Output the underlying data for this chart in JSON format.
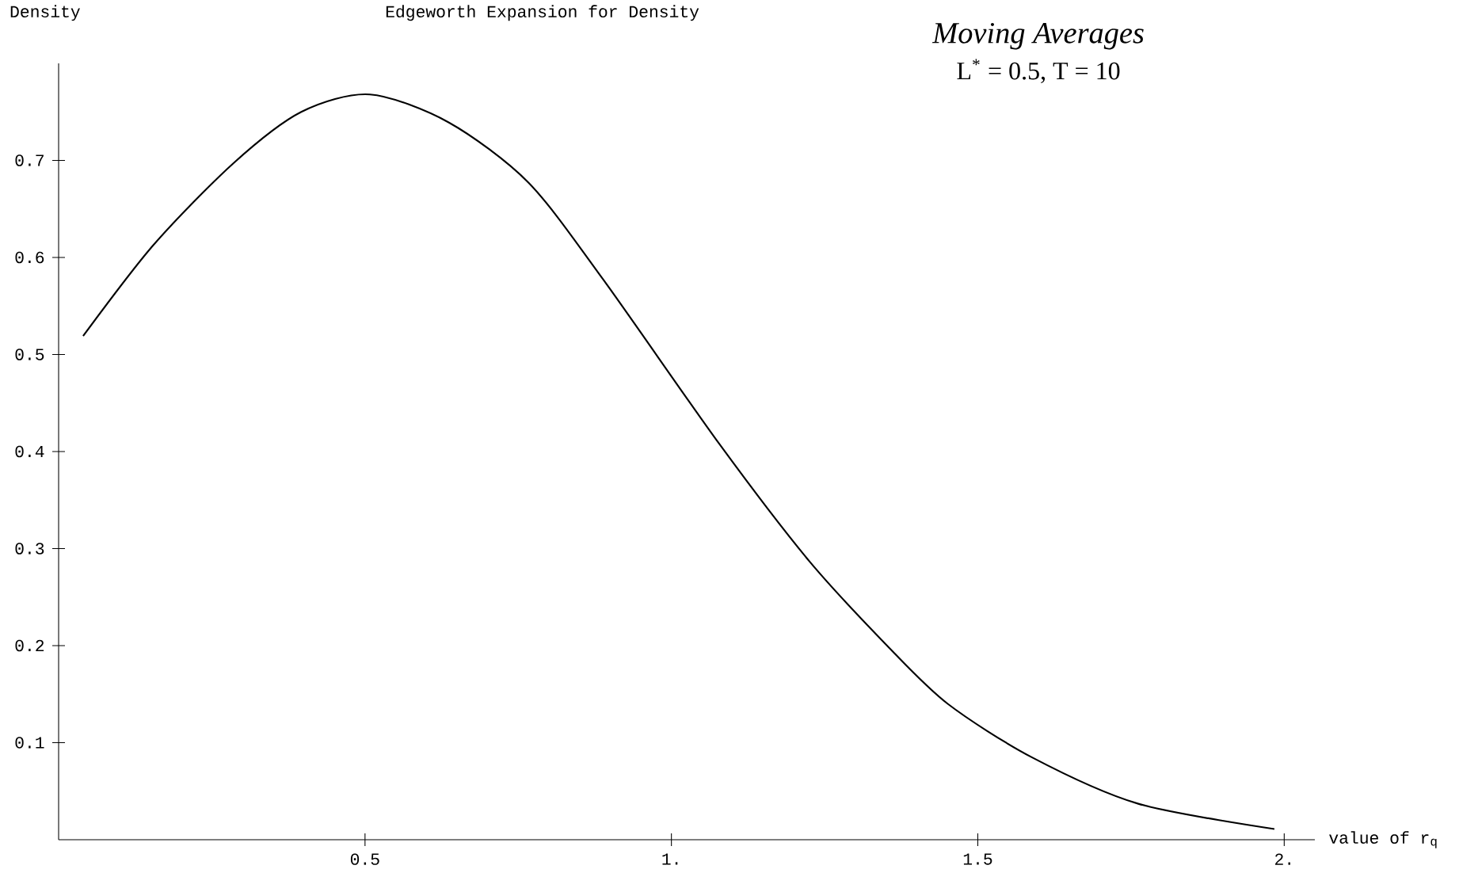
{
  "chart_data": {
    "type": "line",
    "title": "Edgeworth Expansion for Density",
    "ylabel": "Density",
    "xlabel": "value of r$_{q}$",
    "annotations": [
      "Moving Averages",
      "L$^{*}$ = 0.5, T = 10"
    ],
    "x": [
      0.04,
      0.155,
      0.285,
      0.396,
      0.508,
      0.637,
      0.767,
      0.889,
      1.078,
      1.225,
      1.355,
      1.451,
      1.588,
      1.762,
      1.984
    ],
    "series": [
      {
        "color": "#000000",
        "values": [
          0.519,
          0.613,
          0.697,
          0.75,
          0.768,
          0.739,
          0.677,
          0.577,
          0.408,
          0.287,
          0.198,
          0.14,
          0.085,
          0.037,
          0.011
        ]
      }
    ],
    "xlim": [
      0,
      2.05
    ],
    "ylim": [
      0,
      0.8
    ],
    "xticks": [
      0.5,
      {
        "value": 1,
        "label": "1."
      },
      1.5,
      {
        "value": 2,
        "label": "2."
      }
    ],
    "yticks": [
      0.1,
      0.2,
      0.3,
      0.4,
      0.5,
      0.6,
      0.7
    ],
    "grid": false,
    "line_style": "solid"
  }
}
